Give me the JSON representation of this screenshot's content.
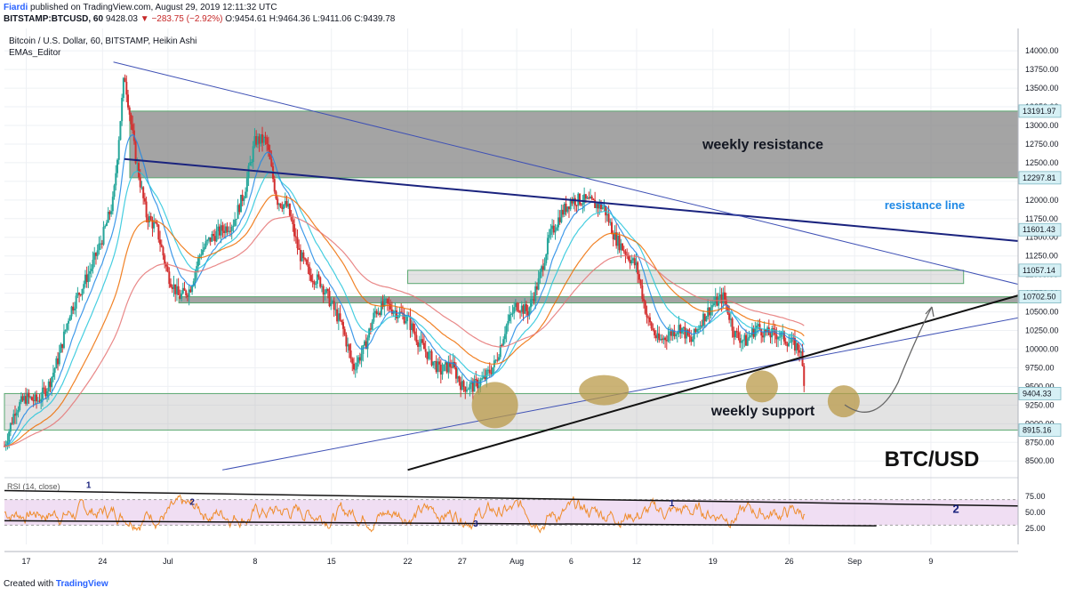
{
  "header": {
    "publisher": "Fiardi",
    "published_text": "published on TradingView.com, August 29, 2019 12:11:32 UTC",
    "symbol": "BITSTAMP:BTCUSD, 60",
    "last": "9428.03",
    "change": "▼ −283.75 (−2.92%)",
    "ohlc": "O:9454.61 H:9464.36 L:9411.06 C:9439.78"
  },
  "legend": {
    "title": "Bitcoin / U.S. Dollar, 60, BITSTAMP, Heikin Ashi",
    "indicator": "EMAs_Editor"
  },
  "footer": {
    "created": "Created with",
    "brand": "TradingView"
  },
  "colors": {
    "candle_up": "#26a69a",
    "candle_down": "#d32f2f",
    "zone_fill": "#8a8a8a",
    "trendline_blue": "#1a237e",
    "trendline_thin": "#3f51b5",
    "support_circle": "#b99a48",
    "rsi_line": "#ef8c2c",
    "rsi_band": "#e1bee7",
    "price_label_bg": "#d6f0f5"
  },
  "chart_data": {
    "type": "candlestick",
    "title": "Bitcoin / U.S. Dollar, 60, BITSTAMP, Heikin Ashi",
    "ylim": [
      8300,
      14300
    ],
    "y_ticks": [
      "14000.00",
      "13750.00",
      "13500.00",
      "13250.00",
      "13000.00",
      "12750.00",
      "12500.00",
      "12250.00",
      "12000.00",
      "11750.00",
      "11500.00",
      "11250.00",
      "11000.00",
      "10750.00",
      "10500.00",
      "10250.00",
      "10000.00",
      "9750.00",
      "9500.00",
      "9250.00",
      "9000.00",
      "8750.00",
      "8500.00"
    ],
    "y_tick_values": [
      14000,
      13750,
      13500,
      13250,
      13000,
      12750,
      12500,
      12250,
      12000,
      11750,
      11500,
      11250,
      11000,
      10750,
      10500,
      10250,
      10000,
      9750,
      9500,
      9250,
      9000,
      8750,
      8500
    ],
    "x_ticks": [
      "17",
      "24",
      "Jul",
      "8",
      "15",
      "22",
      "27",
      "Aug",
      "6",
      "12",
      "19",
      "26",
      "Sep",
      "9"
    ],
    "x_tick_days": [
      17,
      24,
      30,
      38,
      45,
      52,
      57,
      62,
      67,
      73,
      80,
      87,
      93,
      100
    ],
    "x_range_days": [
      15,
      108
    ],
    "price_path": [
      [
        15,
        8700
      ],
      [
        16,
        9200
      ],
      [
        17,
        9350
      ],
      [
        18,
        9300
      ],
      [
        19,
        9500
      ],
      [
        20,
        9900
      ],
      [
        21,
        10500
      ],
      [
        22,
        10800
      ],
      [
        23,
        11100
      ],
      [
        24,
        11500
      ],
      [
        25,
        12000
      ],
      [
        26,
        13700
      ],
      [
        27,
        12600
      ],
      [
        28,
        11800
      ],
      [
        29,
        11600
      ],
      [
        30,
        11000
      ],
      [
        31,
        10700
      ],
      [
        32,
        10800
      ],
      [
        33,
        11300
      ],
      [
        34,
        11500
      ],
      [
        35,
        11600
      ],
      [
        36,
        11700
      ],
      [
        37,
        12100
      ],
      [
        38,
        12800
      ],
      [
        39,
        12800
      ],
      [
        40,
        12000
      ],
      [
        41,
        11900
      ],
      [
        42,
        11300
      ],
      [
        43,
        11000
      ],
      [
        44,
        10900
      ],
      [
        45,
        10600
      ],
      [
        46,
        10300
      ],
      [
        47,
        9750
      ],
      [
        48,
        10000
      ],
      [
        49,
        10500
      ],
      [
        50,
        10600
      ],
      [
        51,
        10500
      ],
      [
        52,
        10400
      ],
      [
        53,
        10100
      ],
      [
        54,
        9900
      ],
      [
        55,
        9700
      ],
      [
        56,
        9800
      ],
      [
        57,
        9500
      ],
      [
        58,
        9500
      ],
      [
        59,
        9600
      ],
      [
        60,
        9800
      ],
      [
        61,
        10300
      ],
      [
        62,
        10600
      ],
      [
        63,
        10500
      ],
      [
        64,
        10900
      ],
      [
        65,
        11500
      ],
      [
        66,
        11800
      ],
      [
        67,
        12000
      ],
      [
        68,
        12000
      ],
      [
        69,
        11950
      ],
      [
        70,
        11900
      ],
      [
        71,
        11500
      ],
      [
        72,
        11300
      ],
      [
        73,
        11100
      ],
      [
        74,
        10400
      ],
      [
        75,
        10100
      ],
      [
        76,
        10200
      ],
      [
        77,
        10300
      ],
      [
        78,
        10100
      ],
      [
        79,
        10400
      ],
      [
        80,
        10600
      ],
      [
        81,
        10700
      ],
      [
        82,
        10200
      ],
      [
        83,
        10100
      ],
      [
        84,
        10300
      ],
      [
        85,
        10200
      ],
      [
        86,
        10200
      ],
      [
        87,
        10100
      ],
      [
        88,
        10000
      ],
      [
        88.5,
        9439.78
      ]
    ],
    "ema_series": [
      {
        "color": "#1e88e5",
        "lag": 1
      },
      {
        "color": "#26c6da",
        "lag": 2
      },
      {
        "color": "#ef6c00",
        "lag": 4
      },
      {
        "color": "#e57373",
        "lag": 7
      }
    ],
    "zones": [
      {
        "label": "weekly resistance",
        "y1": 12297.81,
        "y2": 13191.97,
        "x1": 26.5,
        "x2": 108
      },
      {
        "label": "",
        "y1": 10620,
        "y2": 10702.5,
        "x1": 31,
        "x2": 108
      },
      {
        "label": "",
        "y1": 10880,
        "y2": 11057.14,
        "x1": 52,
        "x2": 103
      },
      {
        "label": "weekly support",
        "y1": 8915.16,
        "y2": 9404.33,
        "x1": 15,
        "x2": 108
      }
    ],
    "trendlines": [
      {
        "kind": "thick_blue",
        "from": [
          26,
          12550
        ],
        "to": [
          108,
          11450
        ]
      },
      {
        "kind": "thin_blue",
        "from": [
          25,
          13850
        ],
        "to": [
          108,
          10870
        ]
      },
      {
        "kind": "thin_blue",
        "from": [
          35,
          8380
        ],
        "to": [
          108,
          10420
        ]
      },
      {
        "kind": "black",
        "from": [
          52,
          8380
        ],
        "to": [
          108,
          10720
        ]
      }
    ],
    "price_labels": [
      "13191.97",
      "12297.81",
      "11601.43",
      "11057.14",
      "10702.50",
      "9404.33",
      "8915.16"
    ],
    "price_label_values": [
      13191.97,
      12297.81,
      11601.43,
      11057.14,
      10702.5,
      9404.33,
      8915.16
    ],
    "annotations": {
      "resistance_line": "resistance line",
      "pair": "BTC/USD"
    },
    "support_circles_days": [
      [
        60,
        9250
      ],
      [
        70,
        9450
      ],
      [
        84.5,
        9500
      ],
      [
        92,
        9300
      ]
    ],
    "rsi": {
      "label": "RSI (14, close)",
      "ticks": [
        "75.00",
        "50.00",
        "25.00"
      ],
      "tick_values": [
        75,
        50,
        25
      ],
      "band": [
        30,
        70
      ],
      "numbers": [
        "1",
        "2",
        "3",
        "1",
        "2"
      ],
      "trendlines": [
        {
          "from": [
            15,
            84
          ],
          "to": [
            108,
            60
          ]
        },
        {
          "from": [
            15,
            37
          ],
          "to": [
            95,
            29
          ]
        }
      ]
    }
  }
}
